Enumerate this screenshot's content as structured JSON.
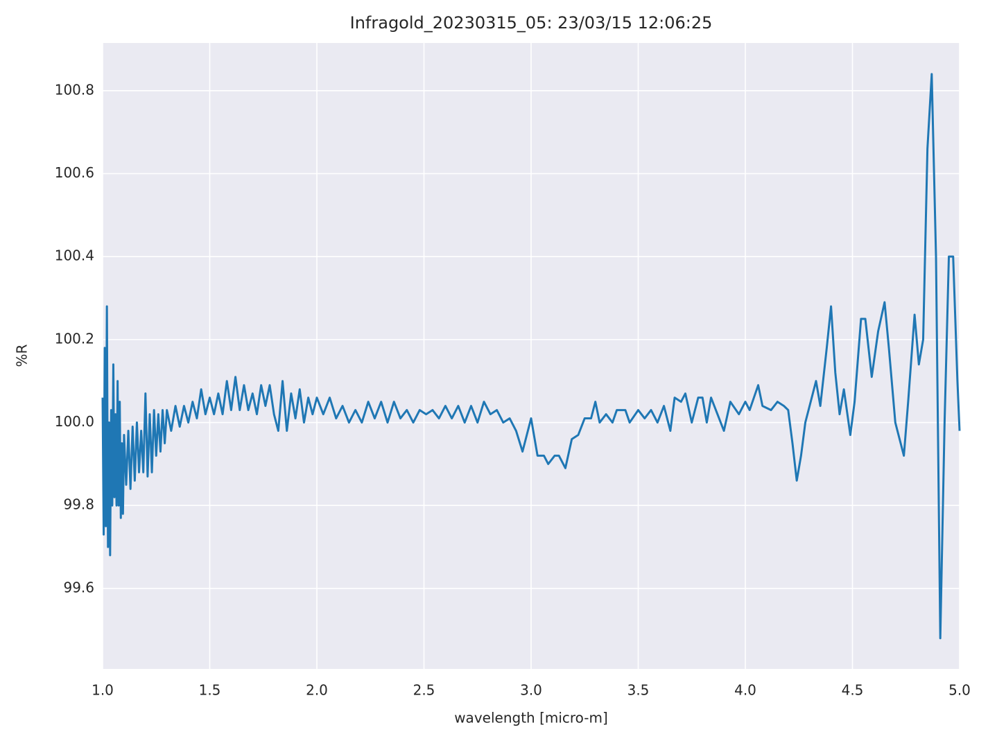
{
  "chart_data": {
    "type": "line",
    "title": "Infragold_20230315_05:  23/03/15 12:06:25",
    "xlabel": "wavelength [micro-m]",
    "ylabel": "%R",
    "color": "#1f77b4",
    "grid": true,
    "xlim": [
      1.0,
      5.0
    ],
    "ylim": [
      99.406,
      100.915
    ],
    "xticks": [
      {
        "value": 1.0,
        "label": "1.0"
      },
      {
        "value": 1.5,
        "label": "1.5"
      },
      {
        "value": 2.0,
        "label": "2.0"
      },
      {
        "value": 2.5,
        "label": "2.5"
      },
      {
        "value": 3.0,
        "label": "3.0"
      },
      {
        "value": 3.5,
        "label": "3.5"
      },
      {
        "value": 4.0,
        "label": "4.0"
      },
      {
        "value": 4.5,
        "label": "4.5"
      },
      {
        "value": 5.0,
        "label": "5.0"
      }
    ],
    "yticks": [
      99.6,
      99.8,
      {
        "value": 100.0,
        "label": "100.0"
      },
      100.2,
      100.4,
      100.6,
      100.8
    ],
    "x": [
      1.0,
      1.005,
      1.01,
      1.015,
      1.02,
      1.025,
      1.03,
      1.035,
      1.04,
      1.045,
      1.05,
      1.055,
      1.06,
      1.065,
      1.07,
      1.075,
      1.08,
      1.085,
      1.09,
      1.095,
      1.1,
      1.11,
      1.12,
      1.13,
      1.14,
      1.15,
      1.16,
      1.17,
      1.18,
      1.19,
      1.2,
      1.21,
      1.22,
      1.23,
      1.24,
      1.25,
      1.26,
      1.27,
      1.28,
      1.29,
      1.3,
      1.32,
      1.34,
      1.36,
      1.38,
      1.4,
      1.42,
      1.44,
      1.46,
      1.48,
      1.5,
      1.52,
      1.54,
      1.56,
      1.58,
      1.6,
      1.62,
      1.64,
      1.66,
      1.68,
      1.7,
      1.72,
      1.74,
      1.76,
      1.78,
      1.8,
      1.82,
      1.84,
      1.86,
      1.88,
      1.9,
      1.92,
      1.94,
      1.96,
      1.98,
      2.0,
      2.03,
      2.06,
      2.09,
      2.12,
      2.15,
      2.18,
      2.21,
      2.24,
      2.27,
      2.3,
      2.33,
      2.36,
      2.39,
      2.42,
      2.45,
      2.48,
      2.51,
      2.54,
      2.57,
      2.6,
      2.63,
      2.66,
      2.69,
      2.72,
      2.75,
      2.78,
      2.81,
      2.84,
      2.87,
      2.9,
      2.93,
      2.96,
      3.0,
      3.03,
      3.06,
      3.08,
      3.11,
      3.13,
      3.16,
      3.19,
      3.22,
      3.25,
      3.28,
      3.3,
      3.32,
      3.35,
      3.38,
      3.4,
      3.44,
      3.46,
      3.5,
      3.53,
      3.56,
      3.59,
      3.62,
      3.65,
      3.67,
      3.7,
      3.72,
      3.75,
      3.78,
      3.8,
      3.82,
      3.84,
      3.87,
      3.9,
      3.93,
      3.97,
      4.0,
      4.02,
      4.06,
      4.08,
      4.12,
      4.15,
      4.18,
      4.2,
      4.22,
      4.24,
      4.26,
      4.28,
      4.3,
      4.33,
      4.35,
      4.38,
      4.4,
      4.42,
      4.44,
      4.46,
      4.49,
      4.51,
      4.54,
      4.56,
      4.59,
      4.62,
      4.65,
      4.67,
      4.7,
      4.72,
      4.74,
      4.76,
      4.79,
      4.81,
      4.83,
      4.85,
      4.87,
      4.89,
      4.91,
      4.93,
      4.95,
      4.97,
      4.99,
      5.0
    ],
    "values": [
      100.06,
      99.73,
      100.18,
      99.75,
      100.28,
      99.7,
      100.0,
      99.68,
      100.03,
      99.8,
      100.14,
      99.82,
      100.02,
      99.8,
      100.1,
      99.8,
      100.05,
      99.77,
      99.95,
      99.78,
      99.97,
      99.85,
      99.98,
      99.84,
      99.99,
      99.86,
      100.0,
      99.88,
      99.98,
      99.88,
      100.07,
      99.87,
      100.02,
      99.88,
      100.03,
      99.92,
      100.02,
      99.93,
      100.03,
      99.95,
      100.03,
      99.98,
      100.04,
      99.99,
      100.04,
      100.0,
      100.05,
      100.01,
      100.08,
      100.02,
      100.06,
      100.02,
      100.07,
      100.02,
      100.1,
      100.03,
      100.11,
      100.03,
      100.09,
      100.03,
      100.07,
      100.02,
      100.09,
      100.04,
      100.09,
      100.02,
      99.98,
      100.1,
      99.98,
      100.07,
      100.01,
      100.08,
      100.0,
      100.06,
      100.02,
      100.06,
      100.02,
      100.06,
      100.01,
      100.04,
      100.0,
      100.03,
      100.0,
      100.05,
      100.01,
      100.05,
      100.0,
      100.05,
      100.01,
      100.03,
      100.0,
      100.03,
      100.02,
      100.03,
      100.01,
      100.04,
      100.01,
      100.04,
      100.0,
      100.04,
      100.0,
      100.05,
      100.02,
      100.03,
      100.0,
      100.01,
      99.98,
      99.93,
      100.01,
      99.92,
      99.92,
      99.9,
      99.92,
      99.92,
      99.89,
      99.96,
      99.97,
      100.01,
      100.01,
      100.05,
      100.0,
      100.02,
      100.0,
      100.03,
      100.03,
      100.0,
      100.03,
      100.01,
      100.03,
      100.0,
      100.04,
      99.98,
      100.06,
      100.05,
      100.07,
      100.0,
      100.06,
      100.06,
      100.0,
      100.06,
      100.02,
      99.98,
      100.05,
      100.02,
      100.05,
      100.03,
      100.09,
      100.04,
      100.03,
      100.05,
      100.04,
      100.03,
      99.95,
      99.86,
      99.92,
      100.0,
      100.04,
      100.1,
      100.04,
      100.18,
      100.28,
      100.12,
      100.02,
      100.08,
      99.97,
      100.05,
      100.25,
      100.25,
      100.11,
      100.22,
      100.29,
      100.18,
      100.0,
      99.96,
      99.92,
      100.05,
      100.26,
      100.14,
      100.2,
      100.66,
      100.84,
      100.4,
      99.48,
      100.0,
      100.4,
      100.4,
      100.1,
      99.98
    ]
  }
}
